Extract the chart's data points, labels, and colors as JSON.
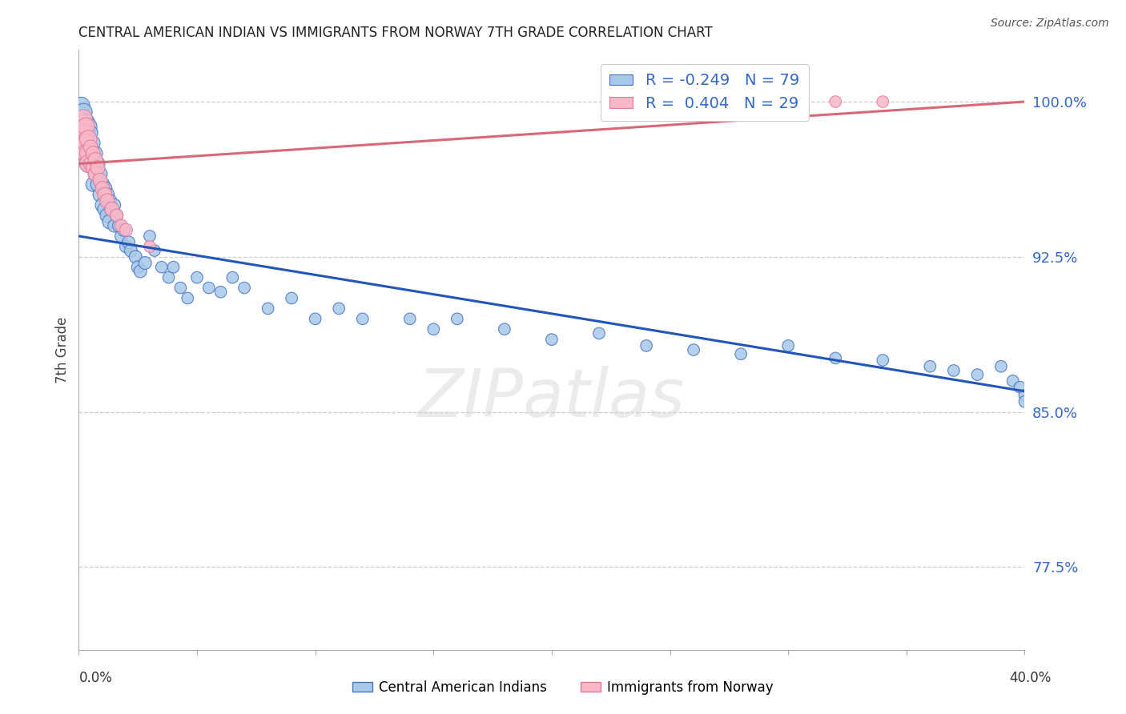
{
  "title": "CENTRAL AMERICAN INDIAN VS IMMIGRANTS FROM NORWAY 7TH GRADE CORRELATION CHART",
  "source": "Source: ZipAtlas.com",
  "ylabel": "7th Grade",
  "ytick_labels": [
    "100.0%",
    "92.5%",
    "85.0%",
    "77.5%"
  ],
  "ytick_values": [
    1.0,
    0.925,
    0.85,
    0.775
  ],
  "xlim": [
    0.0,
    0.4
  ],
  "ylim": [
    0.735,
    1.025
  ],
  "watermark_text": "ZIPatlas",
  "legend_line1": "R = -0.249   N = 79",
  "legend_line2": "R =  0.404   N = 29",
  "blue_color": "#a8c8e8",
  "blue_edge": "#4472c4",
  "pink_color": "#f8b8c8",
  "pink_edge": "#e87898",
  "trendline_blue_color": "#2255bb",
  "trendline_pink_color": "#d86878",
  "blue_scatter_x": [
    0.001,
    0.002,
    0.002,
    0.003,
    0.003,
    0.003,
    0.004,
    0.004,
    0.004,
    0.005,
    0.005,
    0.006,
    0.006,
    0.006,
    0.007,
    0.007,
    0.008,
    0.008,
    0.009,
    0.009,
    0.01,
    0.01,
    0.011,
    0.011,
    0.012,
    0.012,
    0.013,
    0.013,
    0.014,
    0.015,
    0.015,
    0.016,
    0.017,
    0.018,
    0.019,
    0.02,
    0.021,
    0.022,
    0.024,
    0.025,
    0.026,
    0.028,
    0.03,
    0.032,
    0.035,
    0.038,
    0.04,
    0.043,
    0.046,
    0.05,
    0.055,
    0.06,
    0.065,
    0.07,
    0.08,
    0.09,
    0.1,
    0.11,
    0.12,
    0.14,
    0.15,
    0.16,
    0.18,
    0.2,
    0.22,
    0.24,
    0.26,
    0.28,
    0.3,
    0.32,
    0.34,
    0.36,
    0.37,
    0.38,
    0.39,
    0.395,
    0.398,
    0.4,
    0.4
  ],
  "blue_scatter_y": [
    0.998,
    0.995,
    0.985,
    0.99,
    0.982,
    0.975,
    0.988,
    0.978,
    0.97,
    0.985,
    0.975,
    0.98,
    0.97,
    0.96,
    0.975,
    0.965,
    0.97,
    0.96,
    0.965,
    0.955,
    0.96,
    0.95,
    0.958,
    0.948,
    0.955,
    0.945,
    0.952,
    0.942,
    0.948,
    0.95,
    0.94,
    0.945,
    0.94,
    0.935,
    0.938,
    0.93,
    0.932,
    0.928,
    0.925,
    0.92,
    0.918,
    0.922,
    0.935,
    0.928,
    0.92,
    0.915,
    0.92,
    0.91,
    0.905,
    0.915,
    0.91,
    0.908,
    0.915,
    0.91,
    0.9,
    0.905,
    0.895,
    0.9,
    0.895,
    0.895,
    0.89,
    0.895,
    0.89,
    0.885,
    0.888,
    0.882,
    0.88,
    0.878,
    0.882,
    0.876,
    0.875,
    0.872,
    0.87,
    0.868,
    0.872,
    0.865,
    0.862,
    0.858,
    0.855
  ],
  "pink_scatter_x": [
    0.001,
    0.001,
    0.002,
    0.002,
    0.002,
    0.003,
    0.003,
    0.003,
    0.004,
    0.004,
    0.004,
    0.005,
    0.005,
    0.006,
    0.006,
    0.007,
    0.007,
    0.008,
    0.009,
    0.01,
    0.011,
    0.012,
    0.014,
    0.016,
    0.018,
    0.02,
    0.03,
    0.32,
    0.34
  ],
  "pink_scatter_y": [
    0.99,
    0.985,
    0.992,
    0.985,
    0.98,
    0.988,
    0.98,
    0.975,
    0.982,
    0.975,
    0.97,
    0.978,
    0.97,
    0.975,
    0.968,
    0.972,
    0.965,
    0.968,
    0.962,
    0.958,
    0.955,
    0.952,
    0.948,
    0.945,
    0.94,
    0.938,
    0.93,
    1.0,
    1.0
  ],
  "blue_trend_x": [
    0.0,
    0.4
  ],
  "blue_trend_y": [
    0.935,
    0.86
  ],
  "pink_trend_x": [
    0.0,
    0.4
  ],
  "pink_trend_y": [
    0.97,
    1.0
  ],
  "xtick_positions": [
    0.0,
    0.05,
    0.1,
    0.15,
    0.2,
    0.25,
    0.3,
    0.35,
    0.4
  ]
}
